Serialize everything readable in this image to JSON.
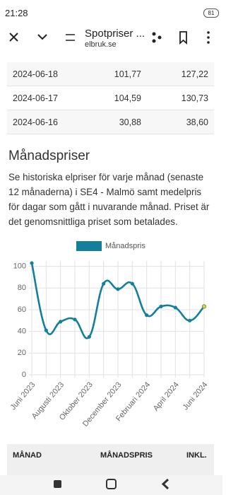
{
  "status_bar": {
    "time": "21:28",
    "battery": "81"
  },
  "browser": {
    "title": "Spotpriser ...",
    "url": "elbruk.se"
  },
  "daily_table": {
    "rows": [
      [
        "2024-06-18",
        "101,77",
        "127,22"
      ],
      [
        "2024-06-17",
        "104,59",
        "130,73"
      ],
      [
        "2024-06-16",
        "30,88",
        "38,60"
      ]
    ]
  },
  "section": {
    "heading": "Månadspriser",
    "text": "Se historiska elpriser för varje månad (senaste 12 månaderna) i SE4 - Malmö samt medelpris för dagar som gått i nuvarande månad. Priset är det genomsnittliga priset som betalades."
  },
  "chart_data": {
    "type": "line",
    "categories": [
      "Juni 2023",
      null,
      "Augusti 2023",
      null,
      "Oktober 2023",
      null,
      "December 2023",
      null,
      "Februari 2024",
      null,
      "April 2024",
      null,
      "Juni 2024"
    ],
    "series": [
      {
        "name": "Månadspris",
        "color": "#13809b",
        "values": [
          103,
          41,
          49,
          51,
          35,
          84,
          79,
          84,
          55,
          63,
          62,
          50,
          63
        ]
      }
    ],
    "ylim": [
      0,
      105
    ],
    "yticks": [
      0,
      20,
      40,
      60,
      80,
      100
    ],
    "grid": true,
    "highlight_color": "#d4d54a"
  },
  "monthly_table": {
    "header": [
      "MÅNAD",
      "MÅNADSPRIS",
      "INKL."
    ]
  }
}
